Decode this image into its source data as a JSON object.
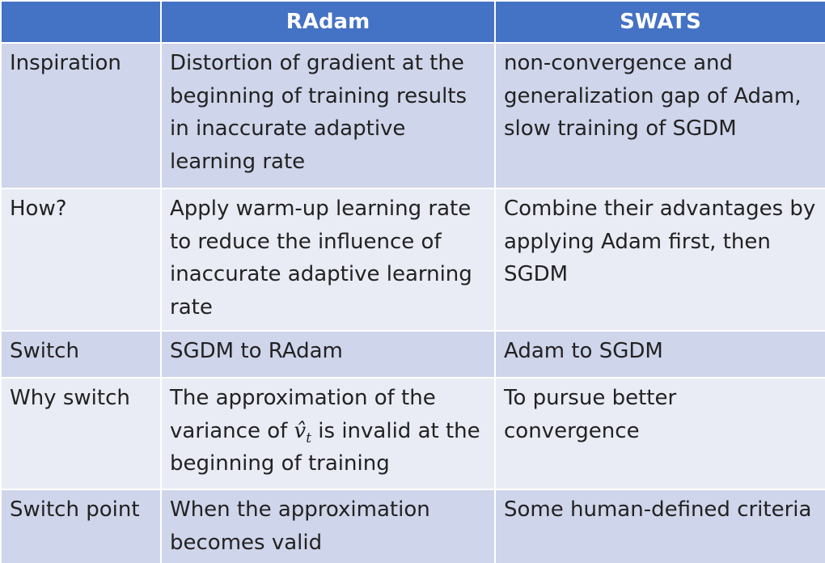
{
  "header": {
    "corner": "",
    "col1": "RAdam",
    "col2": "SWATS"
  },
  "rows": [
    {
      "label": "Inspiration",
      "radam": "Distortion of gradient at the beginning of training results in inaccurate adaptive learning rate",
      "swats": "non-convergence and generalization gap of Adam, slow training of SGDM"
    },
    {
      "label": "How?",
      "radam": "Apply warm-up learning rate to reduce the influence of inaccurate adaptive learning rate",
      "swats": "Combine their advantages by applying Adam first, then SGDM"
    },
    {
      "label": "Switch",
      "radam": "SGDM to RAdam",
      "swats": "Adam to SGDM"
    },
    {
      "label": "Why switch",
      "radam_pre": "The approximation of the variance of",
      "radam_sym": "v̂",
      "radam_sub": "t",
      "radam_post": "is invalid at the beginning of training",
      "swats": "To pursue better convergence"
    },
    {
      "label": "Switch point",
      "radam": "When the approximation becomes valid",
      "swats": "Some human-defined criteria"
    }
  ]
}
